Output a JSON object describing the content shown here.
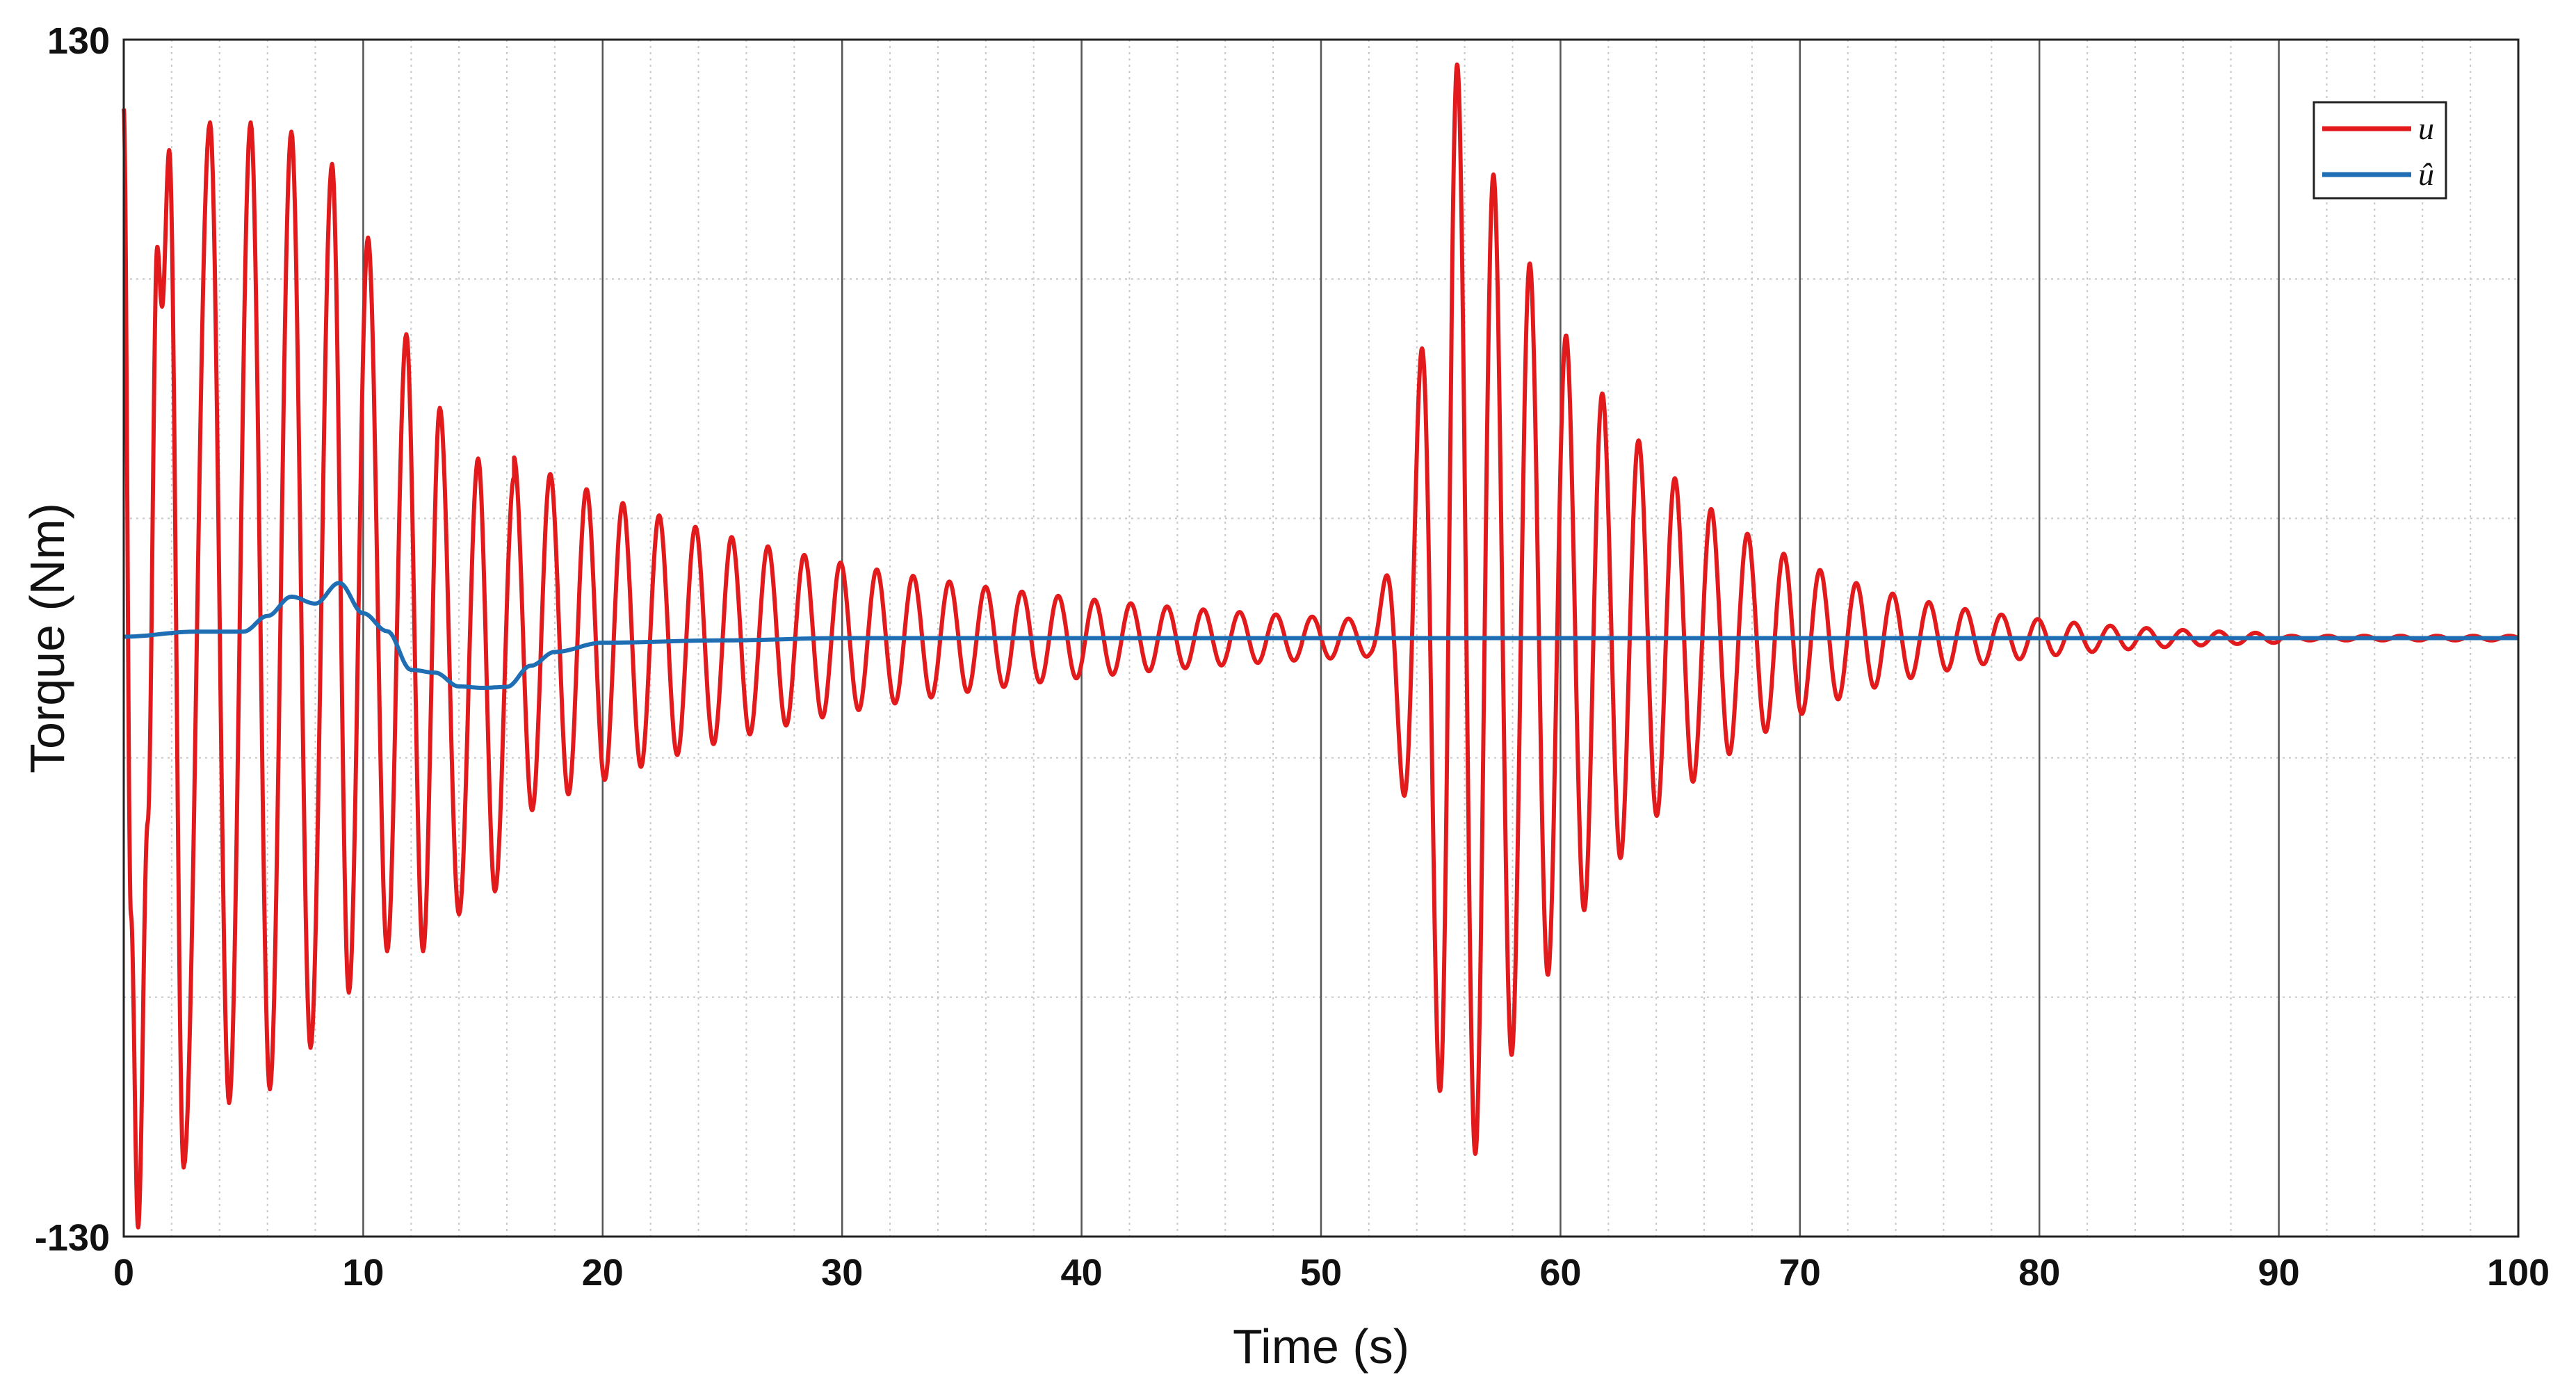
{
  "chart_data": {
    "type": "line",
    "xlabel": "Time (s)",
    "ylabel": "Torque (Nm)",
    "xlim": [
      0,
      100
    ],
    "ylim": [
      -130,
      130
    ],
    "x_ticks": [
      0,
      10,
      20,
      30,
      40,
      50,
      60,
      70,
      80,
      90,
      100
    ],
    "y_ticks": [
      -130,
      130
    ],
    "grid": true,
    "minor_grid": true,
    "legend_position": "top-right",
    "series": [
      {
        "name": "u",
        "color": "#e31a1c",
        "description_points": {
          "x": [
            0,
            0.3,
            0.6,
            1.0,
            1.4,
            1.6,
            1.9,
            2.5,
            3.6,
            4.4,
            5.3,
            6.1,
            7.0,
            7.8,
            8.7,
            9.4,
            10.2,
            11.0,
            11.8,
            12.5,
            13.2,
            14.0,
            14.8,
            15.5,
            16.3
          ],
          "y": [
            115,
            -60,
            -128,
            -40,
            85,
            72,
            106,
            -115,
            112,
            -101,
            112,
            -98,
            110,
            -89,
            103,
            -77,
            87,
            -68,
            66,
            -68,
            50,
            -60,
            39,
            -55,
            35
          ]
        },
        "envelope_segments": [
          {
            "t0": 0,
            "t1": 16,
            "amp0": 110,
            "amp1": 40
          },
          {
            "t0": 16,
            "t1": 52,
            "amp0": 40,
            "amp1": 4
          },
          {
            "t0": 52,
            "t1": 55.5,
            "amp0": 4,
            "amp1": 128
          },
          {
            "t0": 55.5,
            "t1": 90,
            "amp0": 128,
            "amp1": 1
          }
        ],
        "frequency_hz": 0.66
      },
      {
        "name": "û",
        "color": "#1f6eb4",
        "x": [
          0,
          3.0,
          5.0,
          6.0,
          7.0,
          8.0,
          9.0,
          10.0,
          11.0,
          12.0,
          13.0,
          14.0,
          15.0,
          16.0,
          17.0,
          18.0,
          20.0,
          25.0,
          30.0,
          50.0,
          100.0
        ],
        "y": [
          0.3,
          1.4,
          1.4,
          4.8,
          9.0,
          7.5,
          12.0,
          5.4,
          1.5,
          -6.9,
          -7.5,
          -10.5,
          -10.8,
          -10.6,
          -6.0,
          -3.0,
          -1.0,
          -0.5,
          0.0,
          0.0,
          0.0
        ]
      }
    ]
  }
}
